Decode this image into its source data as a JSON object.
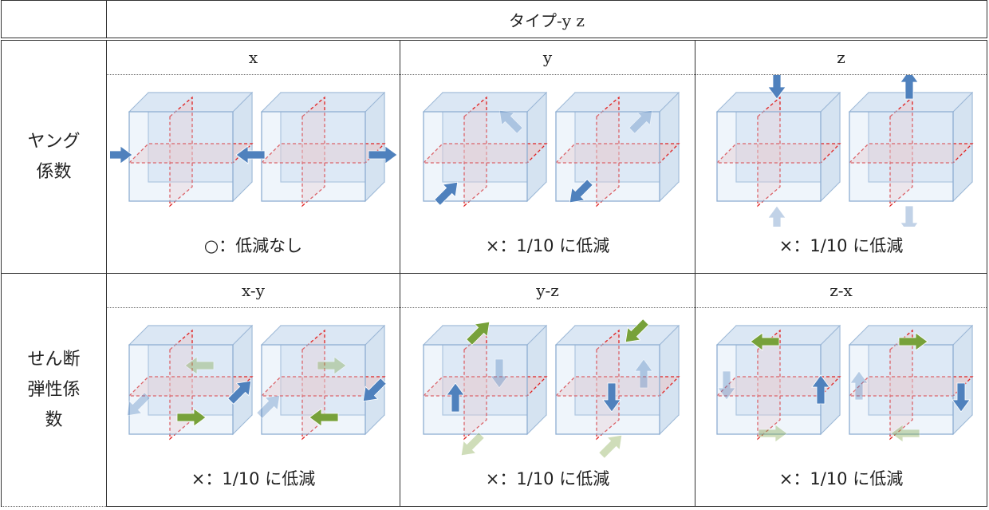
{
  "table": {
    "header": "タイプ-y z",
    "sections": [
      {
        "label": "ヤング係数",
        "columns": [
          {
            "axis": "x",
            "result": "○：低減なし"
          },
          {
            "axis": "y",
            "result": "×：1/10 に低減"
          },
          {
            "axis": "z",
            "result": "×：1/10 に低減"
          }
        ]
      },
      {
        "label": "せん断弾性係数",
        "columns": [
          {
            "axis": "x-y",
            "result": "×：1/10 に低減"
          },
          {
            "axis": "y-z",
            "result": "×：1/10 に低減"
          },
          {
            "axis": "z-x",
            "result": "×：1/10 に低減"
          }
        ]
      }
    ]
  }
}
